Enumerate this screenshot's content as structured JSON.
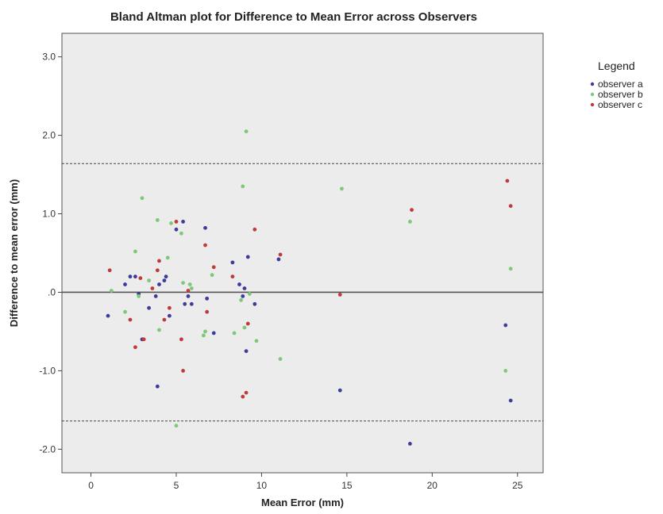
{
  "chart_data": {
    "type": "scatter",
    "title": "Bland Altman plot for Difference to Mean Error across Observers",
    "xlabel": "Mean Error (mm)",
    "ylabel": "Difference to mean error (mm)",
    "xlim": [
      -1.7,
      26.5
    ],
    "ylim": [
      -2.3,
      3.3
    ],
    "xticks": [
      0,
      5,
      10,
      15,
      20,
      25
    ],
    "xtick_labels": [
      "0",
      "5",
      "10",
      "15",
      "20",
      "25"
    ],
    "yticks": [
      -2,
      -1,
      0,
      1,
      2,
      3
    ],
    "ytick_labels": [
      "-2.0",
      "-1.0",
      ".0",
      "1.0",
      "2.0",
      "3.0"
    ],
    "grid": false,
    "reference_lines": {
      "mean_difference": 0,
      "upper_limit": 1.64,
      "lower_limit": -1.64
    },
    "legend": {
      "title": "Legend",
      "placement": "right"
    },
    "series": [
      {
        "name": "observer a",
        "color": "#3c3c9a",
        "points": [
          [
            1.0,
            -0.3
          ],
          [
            2.0,
            0.1
          ],
          [
            2.3,
            0.2
          ],
          [
            2.6,
            0.2
          ],
          [
            2.8,
            -0.02
          ],
          [
            3.0,
            -0.6
          ],
          [
            3.4,
            -0.2
          ],
          [
            3.8,
            -0.05
          ],
          [
            3.9,
            -1.2
          ],
          [
            4.0,
            0.1
          ],
          [
            4.3,
            0.15
          ],
          [
            4.4,
            0.2
          ],
          [
            4.6,
            -0.3
          ],
          [
            5.0,
            0.8
          ],
          [
            5.4,
            0.9
          ],
          [
            5.5,
            -0.15
          ],
          [
            5.7,
            -0.05
          ],
          [
            5.9,
            -0.15
          ],
          [
            6.7,
            0.82
          ],
          [
            6.8,
            -0.08
          ],
          [
            7.2,
            -0.52
          ],
          [
            8.3,
            0.38
          ],
          [
            8.7,
            0.1
          ],
          [
            8.9,
            -0.05
          ],
          [
            9.0,
            0.05
          ],
          [
            9.1,
            -0.75
          ],
          [
            9.2,
            0.45
          ],
          [
            9.6,
            -0.15
          ],
          [
            11.0,
            0.42
          ],
          [
            14.6,
            -1.25
          ],
          [
            18.7,
            -1.93
          ],
          [
            24.3,
            -0.42
          ],
          [
            24.6,
            -1.38
          ]
        ]
      },
      {
        "name": "observer b",
        "color": "#7dc97a",
        "points": [
          [
            1.2,
            0.02
          ],
          [
            2.0,
            -0.25
          ],
          [
            2.6,
            0.52
          ],
          [
            2.8,
            -0.05
          ],
          [
            3.0,
            1.2
          ],
          [
            3.4,
            0.15
          ],
          [
            3.9,
            0.92
          ],
          [
            4.0,
            -0.48
          ],
          [
            4.5,
            0.44
          ],
          [
            4.7,
            0.88
          ],
          [
            5.0,
            -1.7
          ],
          [
            5.3,
            0.75
          ],
          [
            5.4,
            0.12
          ],
          [
            5.8,
            0.1
          ],
          [
            5.9,
            0.05
          ],
          [
            6.6,
            -0.55
          ],
          [
            6.7,
            -0.5
          ],
          [
            7.1,
            0.22
          ],
          [
            8.4,
            -0.52
          ],
          [
            8.8,
            -0.1
          ],
          [
            8.9,
            1.35
          ],
          [
            9.0,
            -0.45
          ],
          [
            9.1,
            2.05
          ],
          [
            9.3,
            -0.02
          ],
          [
            9.7,
            -0.62
          ],
          [
            11.1,
            -0.85
          ],
          [
            14.7,
            1.32
          ],
          [
            18.7,
            0.9
          ],
          [
            24.3,
            -1.0
          ],
          [
            24.6,
            0.3
          ]
        ]
      },
      {
        "name": "observer c",
        "color": "#c03a3a",
        "points": [
          [
            1.1,
            0.28
          ],
          [
            2.3,
            -0.35
          ],
          [
            2.6,
            -0.7
          ],
          [
            2.9,
            0.18
          ],
          [
            3.1,
            -0.6
          ],
          [
            3.6,
            0.05
          ],
          [
            3.9,
            0.28
          ],
          [
            4.0,
            0.4
          ],
          [
            4.3,
            -0.35
          ],
          [
            4.6,
            -0.2
          ],
          [
            5.0,
            0.9
          ],
          [
            5.3,
            -0.6
          ],
          [
            5.4,
            -1.0
          ],
          [
            5.7,
            0.02
          ],
          [
            6.7,
            0.6
          ],
          [
            6.8,
            -0.25
          ],
          [
            7.2,
            0.32
          ],
          [
            8.3,
            0.2
          ],
          [
            8.9,
            -1.33
          ],
          [
            9.1,
            -1.28
          ],
          [
            9.2,
            -0.4
          ],
          [
            9.6,
            0.8
          ],
          [
            11.1,
            0.48
          ],
          [
            14.6,
            -0.03
          ],
          [
            18.8,
            1.05
          ],
          [
            24.4,
            1.42
          ],
          [
            24.6,
            1.1
          ]
        ]
      }
    ]
  }
}
